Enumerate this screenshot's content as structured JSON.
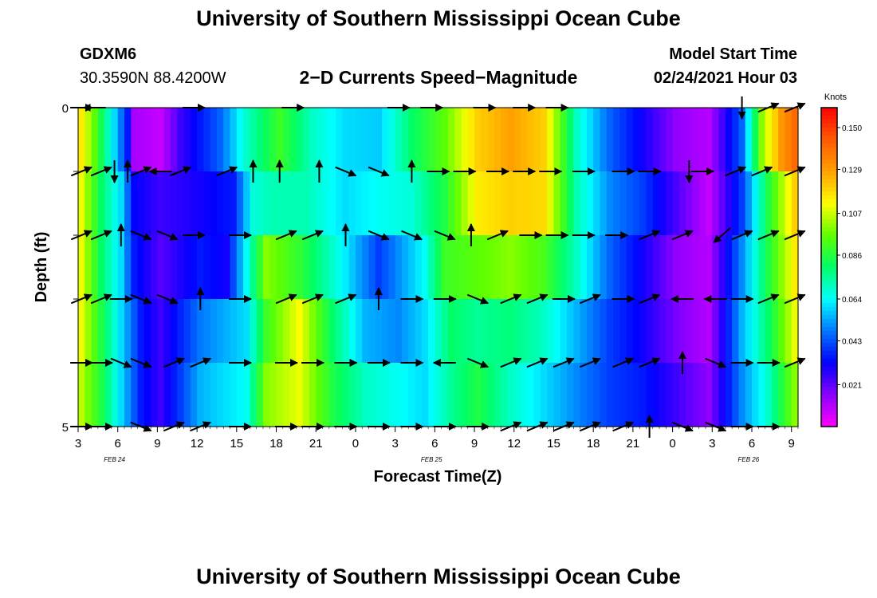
{
  "header": {
    "title": "University of Southern Mississippi Ocean Cube",
    "station_name": "GDXM6",
    "station_coords": "30.3590N 88.4200W",
    "product": "2−D Currents Speed−Magnitude",
    "model_start_label": "Model Start Time",
    "model_start_value": "02/24/2021 Hour 03"
  },
  "footer": {
    "title": "University of Southern Mississippi Ocean Cube"
  },
  "colors": {
    "scale": [
      "#ff00ff",
      "#8a00ff",
      "#0000ff",
      "#0078ff",
      "#00ffff",
      "#00ff66",
      "#60ff00",
      "#ffff00",
      "#ffa000",
      "#ff5a00",
      "#ff0000"
    ],
    "arrow": "#000000"
  },
  "chart_data": {
    "type": "heatmap",
    "title": "2−D Currents Speed−Magnitude",
    "xlabel": "Forecast Time(Z)",
    "ylabel": "Depth (ft)",
    "x_tick_labels": [
      "3",
      "6",
      "9",
      "12",
      "15",
      "18",
      "21",
      "0",
      "3",
      "6",
      "9",
      "12",
      "15",
      "18",
      "21",
      "0",
      "3",
      "6",
      "9"
    ],
    "date_labels": [
      {
        "label": "FEB 24",
        "hour_index": 5
      },
      {
        "label": "FEB 25",
        "hour_index": 53
      },
      {
        "label": "FEB 26",
        "hour_index": 101
      }
    ],
    "y_tick_labels": [
      "0",
      "",
      "",
      "",
      "",
      "5"
    ],
    "ylim": [
      0,
      5
    ],
    "colorbar": {
      "unit": "Knots",
      "range": [
        0.0,
        0.16
      ],
      "tick_labels": [
        "0.150",
        "0.129",
        "0.107",
        "0.086",
        "0.064",
        "0.043",
        "0.021"
      ],
      "tick_values": [
        0.15,
        0.129,
        0.107,
        0.086,
        0.064,
        0.043,
        0.021
      ]
    },
    "hours": 109,
    "depth_rows": 5,
    "speed_keypoints": [
      [
        [
          0,
          0.115
        ],
        [
          2,
          0.095
        ],
        [
          5,
          0.06
        ],
        [
          7,
          0.035
        ],
        [
          8,
          0.012
        ],
        [
          12,
          0.008
        ],
        [
          15,
          0.025
        ],
        [
          21,
          0.045
        ],
        [
          25,
          0.07
        ],
        [
          30,
          0.09
        ],
        [
          35,
          0.07
        ],
        [
          40,
          0.06
        ],
        [
          45,
          0.058
        ],
        [
          50,
          0.08
        ],
        [
          55,
          0.095
        ],
        [
          60,
          0.12
        ],
        [
          65,
          0.128
        ],
        [
          70,
          0.12
        ],
        [
          75,
          0.07
        ],
        [
          80,
          0.045
        ],
        [
          85,
          0.03
        ],
        [
          90,
          0.015
        ],
        [
          95,
          0.01
        ],
        [
          100,
          0.045
        ],
        [
          103,
          0.1
        ],
        [
          106,
          0.13
        ],
        [
          108,
          0.14
        ]
      ],
      [
        [
          0,
          0.11
        ],
        [
          3,
          0.08
        ],
        [
          6,
          0.06
        ],
        [
          8,
          0.032
        ],
        [
          12,
          0.025
        ],
        [
          18,
          0.03
        ],
        [
          23,
          0.035
        ],
        [
          26,
          0.068
        ],
        [
          29,
          0.072
        ],
        [
          34,
          0.072
        ],
        [
          40,
          0.06
        ],
        [
          45,
          0.065
        ],
        [
          50,
          0.068
        ],
        [
          55,
          0.085
        ],
        [
          60,
          0.115
        ],
        [
          65,
          0.12
        ],
        [
          70,
          0.118
        ],
        [
          75,
          0.072
        ],
        [
          80,
          0.05
        ],
        [
          85,
          0.04
        ],
        [
          88,
          0.03
        ],
        [
          95,
          0.008
        ],
        [
          100,
          0.04
        ],
        [
          104,
          0.085
        ],
        [
          108,
          0.12
        ]
      ],
      [
        [
          0,
          0.11
        ],
        [
          3,
          0.08
        ],
        [
          6,
          0.06
        ],
        [
          8,
          0.035
        ],
        [
          12,
          0.022
        ],
        [
          18,
          0.035
        ],
        [
          22,
          0.03
        ],
        [
          28,
          0.1
        ],
        [
          33,
          0.088
        ],
        [
          40,
          0.062
        ],
        [
          45,
          0.04
        ],
        [
          52,
          0.065
        ],
        [
          55,
          0.09
        ],
        [
          60,
          0.095
        ],
        [
          65,
          0.1
        ],
        [
          70,
          0.092
        ],
        [
          75,
          0.07
        ],
        [
          80,
          0.045
        ],
        [
          85,
          0.03
        ],
        [
          90,
          0.015
        ],
        [
          95,
          0.01
        ],
        [
          100,
          0.05
        ],
        [
          104,
          0.085
        ],
        [
          108,
          0.115
        ]
      ],
      [
        [
          0,
          0.11
        ],
        [
          3,
          0.085
        ],
        [
          6,
          0.06
        ],
        [
          9,
          0.035
        ],
        [
          12,
          0.025
        ],
        [
          18,
          0.048
        ],
        [
          25,
          0.06
        ],
        [
          28,
          0.09
        ],
        [
          33,
          0.112
        ],
        [
          38,
          0.08
        ],
        [
          43,
          0.055
        ],
        [
          48,
          0.05
        ],
        [
          52,
          0.06
        ],
        [
          56,
          0.08
        ],
        [
          60,
          0.075
        ],
        [
          65,
          0.078
        ],
        [
          70,
          0.07
        ],
        [
          75,
          0.055
        ],
        [
          80,
          0.04
        ],
        [
          85,
          0.03
        ],
        [
          90,
          0.018
        ],
        [
          95,
          0.01
        ],
        [
          100,
          0.055
        ],
        [
          104,
          0.08
        ],
        [
          108,
          0.11
        ]
      ],
      [
        [
          0,
          0.105
        ],
        [
          3,
          0.085
        ],
        [
          6,
          0.06
        ],
        [
          9,
          0.035
        ],
        [
          12,
          0.025
        ],
        [
          18,
          0.055
        ],
        [
          25,
          0.065
        ],
        [
          28,
          0.1
        ],
        [
          33,
          0.11
        ],
        [
          38,
          0.085
        ],
        [
          43,
          0.07
        ],
        [
          48,
          0.065
        ],
        [
          52,
          0.06
        ],
        [
          56,
          0.075
        ],
        [
          60,
          0.085
        ],
        [
          65,
          0.07
        ],
        [
          70,
          0.06
        ],
        [
          75,
          0.05
        ],
        [
          80,
          0.04
        ],
        [
          85,
          0.035
        ],
        [
          90,
          0.025
        ],
        [
          95,
          0.015
        ],
        [
          100,
          0.05
        ],
        [
          104,
          0.07
        ],
        [
          108,
          0.1
        ]
      ]
    ],
    "arrow_rows": [
      [
        [
          0,
          "E"
        ],
        [
          2,
          "W"
        ],
        [
          17,
          "E"
        ],
        [
          32,
          "E"
        ],
        [
          48,
          "E"
        ],
        [
          53,
          "E"
        ],
        [
          61,
          "E"
        ],
        [
          67,
          "E"
        ],
        [
          72,
          "E"
        ],
        [
          100,
          "S"
        ],
        [
          104,
          "NE"
        ],
        [
          108,
          "NE"
        ]
      ],
      [
        [
          0,
          "NE"
        ],
        [
          3,
          "NE"
        ],
        [
          5,
          "S"
        ],
        [
          7,
          "N"
        ],
        [
          9,
          "NE"
        ],
        [
          12,
          "W"
        ],
        [
          15,
          "NE"
        ],
        [
          22,
          "NE"
        ],
        [
          26,
          "N"
        ],
        [
          30,
          "N"
        ],
        [
          36,
          "N"
        ],
        [
          40,
          "SE"
        ],
        [
          45,
          "SE"
        ],
        [
          50,
          "N"
        ],
        [
          54,
          "E"
        ],
        [
          58,
          "E"
        ],
        [
          63,
          "E"
        ],
        [
          67,
          "E"
        ],
        [
          71,
          "E"
        ],
        [
          76,
          "E"
        ],
        [
          82,
          "E"
        ],
        [
          86,
          "E"
        ],
        [
          92,
          "S"
        ],
        [
          94,
          "E"
        ],
        [
          99,
          "NE"
        ],
        [
          103,
          "NE"
        ],
        [
          108,
          "NE"
        ]
      ],
      [
        [
          0,
          "NE"
        ],
        [
          3,
          "NE"
        ],
        [
          6,
          "N"
        ],
        [
          9,
          "SE"
        ],
        [
          13,
          "SE"
        ],
        [
          17,
          "E"
        ],
        [
          24,
          "E"
        ],
        [
          31,
          "NE"
        ],
        [
          35,
          "NE"
        ],
        [
          40,
          "N"
        ],
        [
          45,
          "SE"
        ],
        [
          50,
          "SE"
        ],
        [
          55,
          "SE"
        ],
        [
          59,
          "N"
        ],
        [
          63,
          "NE"
        ],
        [
          68,
          "E"
        ],
        [
          72,
          "E"
        ],
        [
          76,
          "E"
        ],
        [
          81,
          "E"
        ],
        [
          86,
          "NE"
        ],
        [
          91,
          "NE"
        ],
        [
          97,
          "SW"
        ],
        [
          100,
          "NE"
        ],
        [
          104,
          "NE"
        ],
        [
          108,
          "NE"
        ]
      ],
      [
        [
          0,
          "NE"
        ],
        [
          3,
          "NE"
        ],
        [
          6,
          "E"
        ],
        [
          9,
          "SE"
        ],
        [
          13,
          "SE"
        ],
        [
          18,
          "N"
        ],
        [
          24,
          "E"
        ],
        [
          31,
          "NE"
        ],
        [
          35,
          "NE"
        ],
        [
          40,
          "NE"
        ],
        [
          45,
          "N"
        ],
        [
          50,
          "E"
        ],
        [
          55,
          "E"
        ],
        [
          60,
          "SE"
        ],
        [
          65,
          "NE"
        ],
        [
          69,
          "NE"
        ],
        [
          73,
          "E"
        ],
        [
          77,
          "NE"
        ],
        [
          82,
          "E"
        ],
        [
          86,
          "NE"
        ],
        [
          91,
          "W"
        ],
        [
          96,
          "W"
        ],
        [
          100,
          "E"
        ],
        [
          104,
          "NE"
        ],
        [
          108,
          "NE"
        ]
      ],
      [
        [
          0,
          "E"
        ],
        [
          3,
          "E"
        ],
        [
          6,
          "SE"
        ],
        [
          9,
          "SE"
        ],
        [
          14,
          "NE"
        ],
        [
          18,
          "NE"
        ],
        [
          24,
          "E"
        ],
        [
          31,
          "E"
        ],
        [
          35,
          "E"
        ],
        [
          40,
          "E"
        ],
        [
          45,
          "E"
        ],
        [
          50,
          "E"
        ],
        [
          55,
          "W"
        ],
        [
          60,
          "SE"
        ],
        [
          65,
          "NE"
        ],
        [
          69,
          "NE"
        ],
        [
          73,
          "NE"
        ],
        [
          77,
          "NE"
        ],
        [
          82,
          "NE"
        ],
        [
          86,
          "NE"
        ],
        [
          91,
          "N"
        ],
        [
          96,
          "SE"
        ],
        [
          100,
          "E"
        ],
        [
          104,
          "E"
        ],
        [
          108,
          "NE"
        ]
      ],
      [
        [
          0,
          "E"
        ],
        [
          3,
          "E"
        ],
        [
          9,
          "SE"
        ],
        [
          14,
          "NE"
        ],
        [
          18,
          "NE"
        ],
        [
          24,
          "E"
        ],
        [
          31,
          "E"
        ],
        [
          35,
          "E"
        ],
        [
          40,
          "E"
        ],
        [
          45,
          "E"
        ],
        [
          50,
          "E"
        ],
        [
          55,
          "E"
        ],
        [
          60,
          "E"
        ],
        [
          65,
          "NE"
        ],
        [
          69,
          "NE"
        ],
        [
          73,
          "NE"
        ],
        [
          77,
          "NE"
        ],
        [
          82,
          "NE"
        ],
        [
          86,
          "N"
        ],
        [
          91,
          "SE"
        ],
        [
          96,
          "SE"
        ],
        [
          100,
          "E"
        ],
        [
          104,
          "E"
        ]
      ]
    ]
  }
}
